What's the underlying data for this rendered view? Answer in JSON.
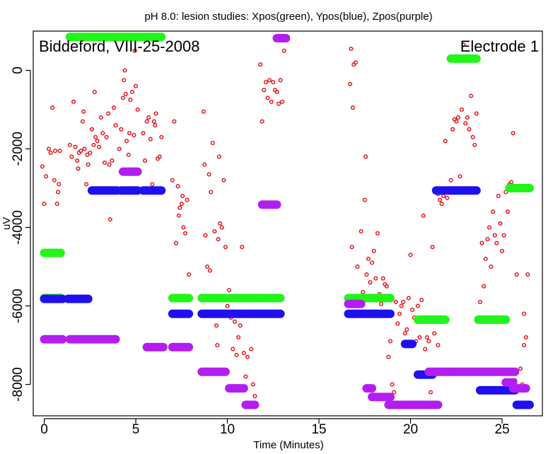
{
  "chart_data": {
    "type": "scatter",
    "title": "pH 8.0: lesion studies: Xpos(green), Ypos(blue), Zpos(purple)",
    "xlabel": "Time (Minutes)",
    "ylabel": "uV",
    "xlim": [
      -0.6,
      27.2
    ],
    "ylim": [
      -8800,
      1000
    ],
    "xticks": [
      0,
      5,
      10,
      15,
      20,
      25
    ],
    "xtick_labels": [
      "0",
      "5",
      "10",
      "15",
      "20",
      "25"
    ],
    "yticks": [
      0,
      -2000,
      -4000,
      -6000,
      -8000
    ],
    "ytick_labels": [
      "0",
      "-2000",
      "-4000",
      "-6000",
      "-8000"
    ],
    "grid": false,
    "annotations": {
      "left": "Biddeford, VIII-25-2008",
      "right": "Electrode 1"
    },
    "colors": {
      "signal": "#e8141a",
      "green": "#22f51a",
      "blue": "#1e10f0",
      "purple": "#b31ef0"
    },
    "series": [
      {
        "color": "green",
        "segments": [
          {
            "x": [
              0,
              0.9
            ],
            "y": -4650
          },
          {
            "x": [
              0,
              0.9
            ],
            "y": -5800
          },
          {
            "x": [
              1.4,
              4.1
            ],
            "y": 850
          },
          {
            "x": [
              4.2,
              5.2
            ],
            "y": 850
          },
          {
            "x": [
              5.2,
              6.4
            ],
            "y": 850
          },
          {
            "x": [
              7.0,
              7.9
            ],
            "y": -5800
          },
          {
            "x": [
              8.6,
              9.9
            ],
            "y": -5800
          },
          {
            "x": [
              10.0,
              10.8
            ],
            "y": -5800
          },
          {
            "x": [
              10.9,
              11.8
            ],
            "y": -5800
          },
          {
            "x": [
              11.9,
              12.9
            ],
            "y": -5800
          },
          {
            "x": [
              16.6,
              17.6
            ],
            "y": -5800
          },
          {
            "x": [
              17.6,
              18.9
            ],
            "y": -5800
          },
          {
            "x": [
              20.4,
              21.9
            ],
            "y": -6350
          },
          {
            "x": [
              22.2,
              23.6
            ],
            "y": 300
          },
          {
            "x": [
              23.7,
              25.2
            ],
            "y": -6350
          },
          {
            "x": [
              25.4,
              26.5
            ],
            "y": -3000
          }
        ]
      },
      {
        "color": "blue",
        "segments": [
          {
            "x": [
              0,
              1.0
            ],
            "y": -5820
          },
          {
            "x": [
              1.3,
              2.4
            ],
            "y": -5820
          },
          {
            "x": [
              2.6,
              4.0
            ],
            "y": -3060
          },
          {
            "x": [
              4.2,
              5.1
            ],
            "y": -3060
          },
          {
            "x": [
              5.4,
              6.4
            ],
            "y": -3060
          },
          {
            "x": [
              7.0,
              7.9
            ],
            "y": -6200
          },
          {
            "x": [
              8.6,
              10.8
            ],
            "y": -6200
          },
          {
            "x": [
              10.9,
              12.9
            ],
            "y": -6200
          },
          {
            "x": [
              16.6,
              18.9
            ],
            "y": -6200
          },
          {
            "x": [
              19.7,
              20.1
            ],
            "y": -6970
          },
          {
            "x": [
              20.4,
              21.2
            ],
            "y": -7750
          },
          {
            "x": [
              21.4,
              21.9
            ],
            "y": -3060
          },
          {
            "x": [
              22.0,
              23.6
            ],
            "y": -3060
          },
          {
            "x": [
              23.8,
              25.7
            ],
            "y": -8150
          },
          {
            "x": [
              25.8,
              26.5
            ],
            "y": -8520
          }
        ]
      },
      {
        "color": "purple",
        "segments": [
          {
            "x": [
              0,
              1.0
            ],
            "y": -6850
          },
          {
            "x": [
              1.4,
              2.5
            ],
            "y": -6850
          },
          {
            "x": [
              2.6,
              3.9
            ],
            "y": -6850
          },
          {
            "x": [
              4.3,
              5.1
            ],
            "y": -2580
          },
          {
            "x": [
              5.6,
              6.5
            ],
            "y": -7050
          },
          {
            "x": [
              7.0,
              7.9
            ],
            "y": -7050
          },
          {
            "x": [
              8.6,
              9.9
            ],
            "y": -7680
          },
          {
            "x": [
              10.1,
              10.9
            ],
            "y": -8100
          },
          {
            "x": [
              11.0,
              11.5
            ],
            "y": -8520
          },
          {
            "x": [
              11.9,
              12.7
            ],
            "y": -3420
          },
          {
            "x": [
              12.7,
              13.2
            ],
            "y": 820
          },
          {
            "x": [
              16.6,
              17.3
            ],
            "y": -5950
          },
          {
            "x": [
              17.6,
              17.9
            ],
            "y": -8100
          },
          {
            "x": [
              17.9,
              18.9
            ],
            "y": -8320
          },
          {
            "x": [
              18.8,
              19.6
            ],
            "y": -8520
          },
          {
            "x": [
              19.6,
              21.5
            ],
            "y": -8520
          },
          {
            "x": [
              21.0,
              22.2
            ],
            "y": -7680
          },
          {
            "x": [
              22.2,
              23.6
            ],
            "y": -7680
          },
          {
            "x": [
              23.7,
              25.7
            ],
            "y": -7680
          },
          {
            "x": [
              25.2,
              25.6
            ],
            "y": -7950
          },
          {
            "x": [
              25.6,
              26.3
            ],
            "y": -8100
          }
        ]
      }
    ],
    "signal_points": [
      [
        -0.1,
        -2450
      ],
      [
        0.0,
        -3400
      ],
      [
        0.1,
        -2700
      ],
      [
        0.25,
        -2000
      ],
      [
        0.35,
        -2100
      ],
      [
        0.45,
        -950
      ],
      [
        0.55,
        -2800
      ],
      [
        0.6,
        -2050
      ],
      [
        0.7,
        -3400
      ],
      [
        0.75,
        -3100
      ],
      [
        0.8,
        -2900
      ],
      [
        0.85,
        -2050
      ],
      [
        1.4,
        -1900
      ],
      [
        1.5,
        -2200
      ],
      [
        1.6,
        -800
      ],
      [
        1.7,
        -1950
      ],
      [
        1.8,
        -2300
      ],
      [
        1.85,
        -2500
      ],
      [
        1.9,
        -2100
      ],
      [
        2.0,
        -2050
      ],
      [
        2.1,
        -1300
      ],
      [
        2.15,
        -1050
      ],
      [
        2.2,
        -2000
      ],
      [
        2.3,
        -2900
      ],
      [
        2.35,
        -2150
      ],
      [
        2.4,
        -2400
      ],
      [
        2.5,
        -2100
      ],
      [
        2.6,
        -1500
      ],
      [
        2.7,
        -1900
      ],
      [
        2.75,
        -550
      ],
      [
        2.8,
        -1700
      ],
      [
        2.9,
        -1800
      ],
      [
        3.0,
        -1950
      ],
      [
        3.1,
        -1200
      ],
      [
        3.2,
        -1600
      ],
      [
        3.3,
        -2350
      ],
      [
        3.4,
        -1700
      ],
      [
        3.5,
        -1100
      ],
      [
        3.55,
        -2400
      ],
      [
        3.6,
        -3800
      ],
      [
        3.7,
        -2300
      ],
      [
        3.8,
        -950
      ],
      [
        3.9,
        -1400
      ],
      [
        4.1,
        -2000
      ],
      [
        4.2,
        -1500
      ],
      [
        4.3,
        -700
      ],
      [
        4.35,
        -250
      ],
      [
        4.4,
        0
      ],
      [
        4.45,
        -600
      ],
      [
        4.5,
        -1800
      ],
      [
        4.6,
        -2150
      ],
      [
        4.65,
        -1600
      ],
      [
        4.7,
        -750
      ],
      [
        4.8,
        -550
      ],
      [
        4.9,
        -1650
      ],
      [
        4.95,
        500
      ],
      [
        5.0,
        -400
      ],
      [
        5.1,
        -1000
      ],
      [
        5.4,
        -1600
      ],
      [
        5.5,
        -2300
      ],
      [
        5.6,
        -1300
      ],
      [
        5.7,
        -1200
      ],
      [
        5.8,
        -1750
      ],
      [
        5.9,
        -2900
      ],
      [
        6.0,
        -1300
      ],
      [
        6.05,
        -1400
      ],
      [
        6.1,
        -1100
      ],
      [
        6.2,
        -2250
      ],
      [
        6.3,
        -2200
      ],
      [
        6.4,
        -1700
      ],
      [
        7.0,
        -2800
      ],
      [
        7.1,
        -1300
      ],
      [
        7.2,
        -4400
      ],
      [
        7.3,
        -2950
      ],
      [
        7.35,
        -3700
      ],
      [
        7.4,
        -3500
      ],
      [
        7.5,
        -3400
      ],
      [
        7.55,
        -3200
      ],
      [
        7.6,
        -4000
      ],
      [
        7.7,
        -4150
      ],
      [
        7.8,
        -3300
      ],
      [
        7.9,
        -5200
      ],
      [
        8.7,
        -1050
      ],
      [
        8.75,
        -2400
      ],
      [
        8.8,
        -4200
      ],
      [
        8.9,
        -5000
      ],
      [
        9.0,
        -2650
      ],
      [
        9.05,
        -5100
      ],
      [
        9.1,
        -3100
      ],
      [
        9.2,
        -1850
      ],
      [
        9.3,
        -4100
      ],
      [
        9.4,
        -6500
      ],
      [
        9.45,
        -7000
      ],
      [
        9.5,
        -4300
      ],
      [
        9.55,
        -2200
      ],
      [
        9.6,
        -3900
      ],
      [
        9.7,
        -4000
      ],
      [
        9.8,
        -2800
      ],
      [
        9.9,
        -4500
      ],
      [
        10.0,
        -6000
      ],
      [
        10.1,
        -5600
      ],
      [
        10.2,
        -6300
      ],
      [
        10.3,
        -7100
      ],
      [
        10.4,
        -6400
      ],
      [
        10.5,
        -7250
      ],
      [
        10.6,
        -6800
      ],
      [
        10.7,
        -6500
      ],
      [
        10.8,
        -4500
      ],
      [
        10.9,
        -7200
      ],
      [
        11.0,
        -7800
      ],
      [
        11.1,
        -7300
      ],
      [
        11.2,
        -6200
      ],
      [
        11.3,
        -7100
      ],
      [
        11.4,
        -8000
      ],
      [
        11.5,
        -8300
      ],
      [
        11.8,
        150
      ],
      [
        11.9,
        -1300
      ],
      [
        12.0,
        -500
      ],
      [
        12.1,
        -300
      ],
      [
        12.2,
        -700
      ],
      [
        12.3,
        -250
      ],
      [
        12.4,
        -800
      ],
      [
        12.5,
        -300
      ],
      [
        12.6,
        -500
      ],
      [
        12.7,
        -550
      ],
      [
        12.8,
        -850
      ],
      [
        12.9,
        -250
      ],
      [
        13.0,
        -800
      ],
      [
        13.1,
        500
      ],
      [
        16.7,
        -350
      ],
      [
        16.75,
        550
      ],
      [
        16.8,
        -4500
      ],
      [
        16.85,
        -950
      ],
      [
        16.9,
        150
      ],
      [
        17.0,
        200
      ],
      [
        17.1,
        -5000
      ],
      [
        17.3,
        -4100
      ],
      [
        17.4,
        -5650
      ],
      [
        17.5,
        -3300
      ],
      [
        17.55,
        -2200
      ],
      [
        17.6,
        -5200
      ],
      [
        17.7,
        -4800
      ],
      [
        17.8,
        -5400
      ],
      [
        17.9,
        -4900
      ],
      [
        18.0,
        -4600
      ],
      [
        18.1,
        -5300
      ],
      [
        18.2,
        -4150
      ],
      [
        18.3,
        -5700
      ],
      [
        18.4,
        -5950
      ],
      [
        18.5,
        -5300
      ],
      [
        18.6,
        -5450
      ],
      [
        18.7,
        -5500
      ],
      [
        18.8,
        -7300
      ],
      [
        18.9,
        -6900
      ],
      [
        19.0,
        -8000
      ],
      [
        19.1,
        -8200
      ],
      [
        19.2,
        -5900
      ],
      [
        19.3,
        -6450
      ],
      [
        19.4,
        -6200
      ],
      [
        19.5,
        -6000
      ],
      [
        19.6,
        -5900
      ],
      [
        19.7,
        -6700
      ],
      [
        19.8,
        -6600
      ],
      [
        19.9,
        -5800
      ],
      [
        20.0,
        -4700
      ],
      [
        20.1,
        -6100
      ],
      [
        20.2,
        -6300
      ],
      [
        20.3,
        -6900
      ],
      [
        20.4,
        -6000
      ],
      [
        20.5,
        -6800
      ],
      [
        20.6,
        -5850
      ],
      [
        20.7,
        -3700
      ],
      [
        20.8,
        -7100
      ],
      [
        20.9,
        -6800
      ],
      [
        21.0,
        -6900
      ],
      [
        21.1,
        -8200
      ],
      [
        21.2,
        -4500
      ],
      [
        21.3,
        -6700
      ],
      [
        21.5,
        -7000
      ],
      [
        21.5,
        -3150
      ],
      [
        21.6,
        -3300
      ],
      [
        21.7,
        -3400
      ],
      [
        21.8,
        -3200
      ],
      [
        21.9,
        -1800
      ],
      [
        22.0,
        -3250
      ],
      [
        22.1,
        -3100
      ],
      [
        22.2,
        -2800
      ],
      [
        22.3,
        -1500
      ],
      [
        22.4,
        -1250
      ],
      [
        22.5,
        -1300
      ],
      [
        22.6,
        -1200
      ],
      [
        22.7,
        -2700
      ],
      [
        22.8,
        -1000
      ],
      [
        22.9,
        650
      ],
      [
        23.0,
        -1350
      ],
      [
        23.1,
        -1200
      ],
      [
        23.2,
        -1500
      ],
      [
        23.3,
        -650
      ],
      [
        23.4,
        -1700
      ],
      [
        23.5,
        -1900
      ],
      [
        23.6,
        -1100
      ],
      [
        23.8,
        -5900
      ],
      [
        23.9,
        -4400
      ],
      [
        24.0,
        -5500
      ],
      [
        24.1,
        -4800
      ],
      [
        24.2,
        -4300
      ],
      [
        24.3,
        -4000
      ],
      [
        24.4,
        -5000
      ],
      [
        24.5,
        -3600
      ],
      [
        24.6,
        -4200
      ],
      [
        24.7,
        -4400
      ],
      [
        24.8,
        -3200
      ],
      [
        24.9,
        -3900
      ],
      [
        25.0,
        -4600
      ],
      [
        25.1,
        -4200
      ],
      [
        25.2,
        -3100
      ],
      [
        25.3,
        -3600
      ],
      [
        25.4,
        -2900
      ],
      [
        25.5,
        -2850
      ],
      [
        25.6,
        -1600
      ],
      [
        25.7,
        -7900
      ],
      [
        25.8,
        -5200
      ],
      [
        26.0,
        -7600
      ],
      [
        26.1,
        -8000
      ],
      [
        26.2,
        -7000
      ],
      [
        26.3,
        -6800
      ],
      [
        26.4,
        -5200
      ],
      [
        26.2,
        -6200
      ]
    ]
  }
}
